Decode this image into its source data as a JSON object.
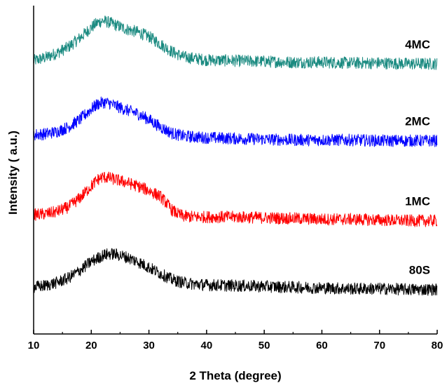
{
  "chart_data": {
    "type": "line",
    "xlabel": "2 Theta (degree)",
    "ylabel": "Intensity ( a.u.)",
    "xlim": [
      10,
      80
    ],
    "x_ticks": [
      10,
      20,
      30,
      40,
      50,
      60,
      70,
      80
    ],
    "y_ticks_visible": false,
    "grid": false,
    "legend": "none",
    "series": [
      {
        "name": "4MC",
        "color": "#1a8a80",
        "x": [
          10,
          12,
          14,
          16,
          18,
          20,
          21,
          22,
          23,
          24,
          26,
          28,
          30,
          32,
          34,
          36,
          38,
          40,
          45,
          50,
          55,
          60,
          65,
          70,
          75,
          80
        ],
        "y": [
          3.02,
          3.06,
          3.12,
          3.2,
          3.32,
          3.46,
          3.52,
          3.55,
          3.53,
          3.5,
          3.44,
          3.4,
          3.34,
          3.24,
          3.14,
          3.07,
          3.05,
          3.03,
          3.02,
          3.01,
          3.0,
          3.0,
          2.99,
          2.99,
          2.98,
          2.98
        ]
      },
      {
        "name": "2MC",
        "color": "#0000ff",
        "x": [
          10,
          12,
          14,
          16,
          18,
          20,
          21,
          22,
          23,
          24,
          26,
          28,
          30,
          32,
          34,
          36,
          38,
          40,
          45,
          50,
          55,
          60,
          65,
          70,
          75,
          80
        ],
        "y": [
          2.04,
          2.05,
          2.08,
          2.14,
          2.24,
          2.38,
          2.44,
          2.47,
          2.46,
          2.43,
          2.37,
          2.32,
          2.24,
          2.14,
          2.06,
          2.02,
          2.01,
          2.0,
          1.99,
          1.98,
          1.97,
          1.97,
          1.97,
          1.96,
          1.96,
          1.96
        ]
      },
      {
        "name": "1MC",
        "color": "#ff0000",
        "x": [
          10,
          12,
          14,
          16,
          18,
          20,
          21,
          22,
          23,
          24,
          26,
          28,
          30,
          32,
          33,
          34,
          35,
          36,
          38,
          40,
          45,
          50,
          55,
          60,
          65,
          70,
          75,
          80
        ],
        "y": [
          0.98,
          0.99,
          1.02,
          1.08,
          1.2,
          1.36,
          1.44,
          1.48,
          1.47,
          1.45,
          1.41,
          1.36,
          1.3,
          1.22,
          1.14,
          1.04,
          0.99,
          0.96,
          0.95,
          0.95,
          0.95,
          0.94,
          0.93,
          0.92,
          0.92,
          0.91,
          0.9,
          0.9
        ]
      },
      {
        "name": "80S",
        "color": "#000000",
        "x": [
          10,
          12,
          14,
          16,
          18,
          20,
          22,
          23,
          24,
          25,
          26,
          28,
          30,
          32,
          34,
          36,
          38,
          40,
          45,
          50,
          55,
          60,
          65,
          70,
          75,
          80
        ],
        "y": [
          0.02,
          0.04,
          0.08,
          0.14,
          0.24,
          0.36,
          0.44,
          0.46,
          0.46,
          0.44,
          0.42,
          0.36,
          0.28,
          0.2,
          0.12,
          0.08,
          0.06,
          0.05,
          0.04,
          0.03,
          0.02,
          0.01,
          0.0,
          0.0,
          -0.01,
          -0.01
        ]
      }
    ]
  }
}
